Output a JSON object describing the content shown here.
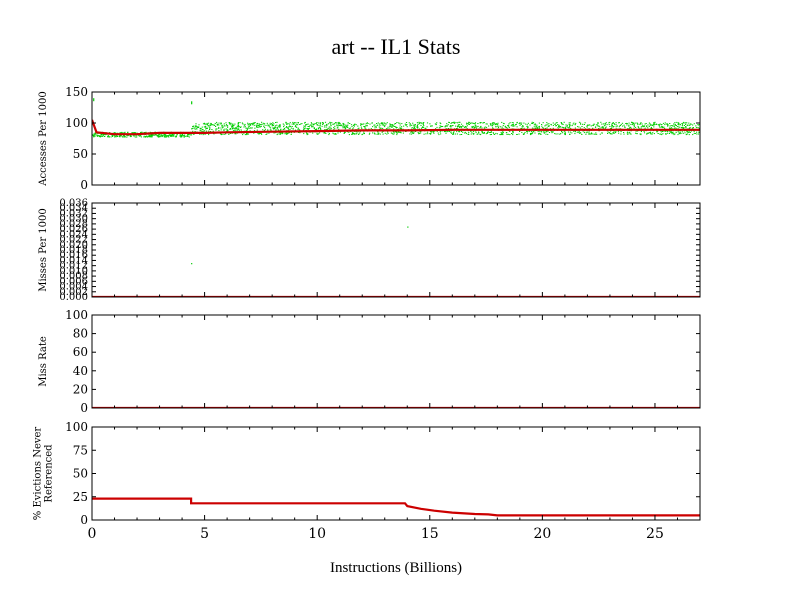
{
  "title": "art -- IL1  Stats",
  "xlabel": "Instructions (Billions)",
  "colors": {
    "series_main": "#cc0000",
    "series_scatter": "#00cc00",
    "axis": "#000000"
  },
  "chart_data": [
    {
      "type": "scatter",
      "ylabel": "Accesses Per 1000",
      "xlim": [
        0,
        27
      ],
      "ylim": [
        0,
        150
      ],
      "yticks": [
        0,
        50,
        100,
        150
      ],
      "xticks": [
        0,
        5,
        10,
        15,
        20,
        25
      ],
      "show_xtick_labels": false,
      "series": [
        {
          "style": "scatter-band",
          "color": "#00cc00",
          "segments": [
            {
              "x": [
                0,
                4.4
              ],
              "center": 82,
              "spread": 4
            },
            {
              "x": [
                4.4,
                27
              ],
              "center": 92,
              "spread": 10
            }
          ]
        },
        {
          "style": "line",
          "color": "#cc0000",
          "x": [
            0,
            0.2,
            1,
            2,
            3,
            4,
            5,
            6,
            8,
            10,
            12,
            14,
            16,
            18,
            20,
            22,
            24,
            26,
            27
          ],
          "y": [
            105,
            85,
            82,
            82,
            84,
            84,
            84,
            85,
            86,
            87,
            88,
            88,
            89,
            89,
            89,
            89,
            89,
            89,
            89
          ]
        }
      ]
    },
    {
      "type": "scatter",
      "ylabel": "Misses Per 1000",
      "xlim": [
        0,
        27
      ],
      "ylim": [
        0,
        0.036
      ],
      "yticks": [
        0.0,
        0.002,
        0.004,
        0.006,
        0.008,
        0.01,
        0.012,
        0.014,
        0.016,
        0.018,
        0.02,
        0.022,
        0.024,
        0.026,
        0.028,
        0.03,
        0.032,
        0.034,
        0.036
      ],
      "ytick_labels": [
        "0.000",
        "0.002",
        "0.004",
        "0.006",
        "0.008",
        "0.010",
        "0.012",
        "0.014",
        "0.016",
        "0.018",
        "0.020",
        "0.022",
        "0.024",
        "0.026",
        "0.028",
        "0.030",
        "0.032",
        "0.034",
        "0.036"
      ],
      "xticks": [
        0,
        5,
        10,
        15,
        20,
        25
      ],
      "show_xtick_labels": false,
      "series": [
        {
          "style": "points",
          "color": "#00cc00",
          "x": [
            4.4,
            14.0
          ],
          "y": [
            0.013,
            0.027
          ]
        },
        {
          "style": "line",
          "color": "#cc0000",
          "x": [
            0,
            27
          ],
          "y": [
            0.0,
            0.0
          ]
        }
      ]
    },
    {
      "type": "line",
      "ylabel": "Miss Rate",
      "xlim": [
        0,
        27
      ],
      "ylim": [
        0,
        100
      ],
      "yticks": [
        0,
        20,
        40,
        60,
        80,
        100
      ],
      "xticks": [
        0,
        5,
        10,
        15,
        20,
        25
      ],
      "show_xtick_labels": false,
      "series": [
        {
          "style": "line",
          "color": "#cc0000",
          "x": [
            0,
            27
          ],
          "y": [
            0,
            0
          ]
        }
      ]
    },
    {
      "type": "line",
      "ylabel": "% Evictions Never Referenced",
      "ylabel_lines": [
        "% Evictions Never",
        "Referenced"
      ],
      "xlim": [
        0,
        27
      ],
      "ylim": [
        0,
        100
      ],
      "yticks": [
        0,
        25,
        50,
        75,
        100
      ],
      "xticks": [
        0,
        5,
        10,
        15,
        20,
        25
      ],
      "show_xtick_labels": true,
      "series": [
        {
          "style": "line",
          "color": "#cc0000",
          "x": [
            0,
            4.4,
            4.4,
            13.9,
            14.0,
            14.6,
            15.2,
            16.0,
            17.0,
            17.6,
            18.0,
            27
          ],
          "y": [
            23,
            23,
            18,
            18,
            15,
            12,
            10,
            8,
            6.5,
            6,
            5,
            5
          ]
        }
      ]
    }
  ]
}
